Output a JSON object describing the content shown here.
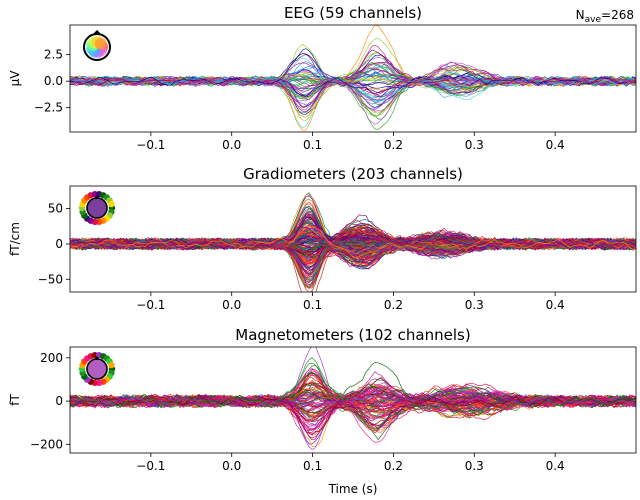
{
  "nave": {
    "prefix": "N",
    "sub": "ave",
    "value": "=268"
  },
  "xlabel": "Time (s)",
  "chart_data": [
    {
      "type": "line",
      "title": "EEG (59 channels)",
      "ylabel": "µV",
      "xlim": [
        -0.2,
        0.5
      ],
      "ylim": [
        -4.8,
        5.3
      ],
      "xticks": [
        -0.1,
        0.0,
        0.1,
        0.2,
        0.3,
        0.4
      ],
      "xtick_labels": [
        "−0.1",
        "0.0",
        "0.1",
        "0.2",
        "0.3",
        "0.4"
      ],
      "yticks": [
        2.5,
        0.0,
        -2.5
      ],
      "ytick_labels": [
        "2.5",
        "0.0",
        "−2.5"
      ],
      "n_channels": 59,
      "show_xlabel": false,
      "sensor_icon": "eeg-head-topomap",
      "components": [
        {
          "t": 0.09,
          "w": 0.02,
          "amp": 3.0
        },
        {
          "t": 0.18,
          "w": 0.025,
          "amp": -3.2
        },
        {
          "t": 0.28,
          "w": 0.035,
          "amp": 1.2
        }
      ],
      "noise": 0.35,
      "palette": [
        "#2ca02c",
        "#7cfc00",
        "#40e0d0",
        "#1e90ff",
        "#6495ed",
        "#ff8c00",
        "#8b008b",
        "#ba55d3",
        "#c71585",
        "#3cb371",
        "#000080",
        "#9acd32",
        "#4169e1",
        "#228b22"
      ]
    },
    {
      "type": "line",
      "title": "Gradiometers (203 channels)",
      "ylabel": "fT/cm",
      "xlim": [
        -0.2,
        0.5
      ],
      "ylim": [
        -68,
        82
      ],
      "xticks": [
        -0.1,
        0.0,
        0.1,
        0.2,
        0.3,
        0.4
      ],
      "xtick_labels": [
        "−0.1",
        "0.0",
        "0.1",
        "0.2",
        "0.3",
        "0.4"
      ],
      "yticks": [
        50,
        0,
        -50
      ],
      "ytick_labels": [
        "50",
        "0",
        "−50"
      ],
      "n_channels": 203,
      "show_xlabel": false,
      "sensor_icon": "gradiometer-topomap",
      "components": [
        {
          "t": 0.095,
          "w": 0.018,
          "amp": 55
        },
        {
          "t": 0.16,
          "w": 0.03,
          "amp": -25
        },
        {
          "t": 0.26,
          "w": 0.04,
          "amp": 12
        }
      ],
      "noise": 6,
      "palette": [
        "#ff4500",
        "#ff6347",
        "#8b008b",
        "#800080",
        "#006400",
        "#008080",
        "#dc143c",
        "#ff8c00",
        "#4b0082",
        "#b22222",
        "#9932cc",
        "#2e8b57"
      ]
    },
    {
      "type": "line",
      "title": "Magnetometers (102 channels)",
      "ylabel": "fT",
      "xlim": [
        -0.2,
        0.5
      ],
      "ylim": [
        -240,
        250
      ],
      "xticks": [
        -0.1,
        0.0,
        0.1,
        0.2,
        0.3,
        0.4
      ],
      "xtick_labels": [
        "−0.1",
        "0.0",
        "0.1",
        "0.2",
        "0.3",
        "0.4"
      ],
      "yticks": [
        200,
        0,
        -200
      ],
      "ytick_labels": [
        "200",
        "0",
        "−200"
      ],
      "n_channels": 102,
      "show_xlabel": true,
      "sensor_icon": "magnetometer-topomap",
      "components": [
        {
          "t": 0.1,
          "w": 0.02,
          "amp": 170
        },
        {
          "t": 0.18,
          "w": 0.03,
          "amp": 110
        },
        {
          "t": 0.29,
          "w": 0.05,
          "amp": 60
        }
      ],
      "noise": 22,
      "palette": [
        "#ff8c00",
        "#ff4500",
        "#006400",
        "#dc143c",
        "#8b008b",
        "#ff1493",
        "#228b22",
        "#8b0000",
        "#9932cc",
        "#c71585",
        "#2e8b57",
        "#ff6347"
      ]
    }
  ]
}
